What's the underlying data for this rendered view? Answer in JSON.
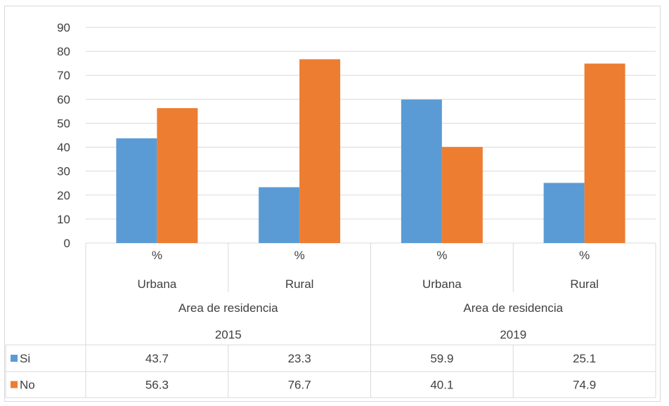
{
  "chart_data": {
    "type": "bar",
    "categories": [
      {
        "stat": "%",
        "area": "Urbana",
        "group": "Area de residencia",
        "year": "2015"
      },
      {
        "stat": "%",
        "area": "Rural",
        "group": "Area de residencia",
        "year": "2015"
      },
      {
        "stat": "%",
        "area": "Urbana",
        "group": "Area de residencia",
        "year": "2019"
      },
      {
        "stat": "%",
        "area": "Rural",
        "group": "Area de residencia",
        "year": "2019"
      }
    ],
    "year_groups": [
      {
        "label": "Area de residencia",
        "year": "2015"
      },
      {
        "label": "Area de residencia",
        "year": "2019"
      }
    ],
    "series": [
      {
        "name": "Si",
        "color": "#5b9bd5",
        "values": [
          43.7,
          23.3,
          59.9,
          25.1
        ],
        "labels": [
          "43.7",
          "23.3",
          "59.9",
          "25.1"
        ]
      },
      {
        "name": "No",
        "color": "#ed7d31",
        "values": [
          56.3,
          76.7,
          40.1,
          74.9
        ],
        "labels": [
          "56.3",
          "76.7",
          "40.1",
          "74.9"
        ]
      }
    ],
    "yticks": [
      "0",
      "10",
      "20",
      "30",
      "40",
      "50",
      "60",
      "70",
      "80",
      "90"
    ],
    "ylim": [
      0,
      90
    ],
    "grid": true,
    "legend": "data-table"
  }
}
